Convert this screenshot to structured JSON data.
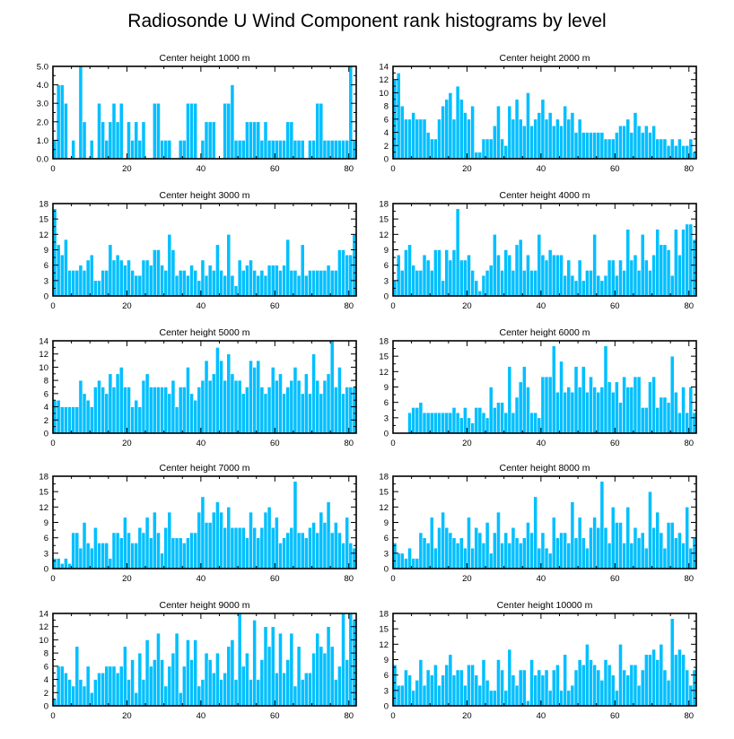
{
  "figure_title": "Radiosonde U Wind Component rank histograms by level",
  "chart_data": [
    {
      "type": "bar",
      "title": "Center height 1000 m",
      "xlim": [
        0,
        82
      ],
      "ylim": [
        0,
        5
      ],
      "xticks": [
        0,
        20,
        40,
        60,
        80
      ],
      "yticks": [
        0,
        1,
        2,
        3,
        4,
        5
      ],
      "ytick_labels": [
        "0.0",
        "1.0",
        "2.0",
        "3.0",
        "4.0",
        "5.0"
      ],
      "values": [
        1,
        4,
        4,
        3,
        0,
        1,
        0,
        5,
        2,
        0,
        1,
        0,
        3,
        2,
        1,
        2,
        3,
        2,
        3,
        0,
        2,
        1,
        2,
        1,
        2,
        0,
        0,
        3,
        3,
        1,
        1,
        1,
        0,
        0,
        1,
        1,
        3,
        3,
        3,
        0,
        1,
        2,
        2,
        2,
        0,
        0,
        3,
        3,
        4,
        1,
        1,
        1,
        2,
        2,
        2,
        2,
        1,
        2,
        1,
        1,
        1,
        1,
        1,
        2,
        2,
        1,
        1,
        1,
        0,
        1,
        1,
        3,
        3,
        1,
        1,
        1,
        1,
        1,
        1,
        1,
        5,
        1
      ]
    },
    {
      "type": "bar",
      "title": "Center height 2000 m",
      "xlim": [
        0,
        82
      ],
      "ylim": [
        0,
        14
      ],
      "xticks": [
        0,
        20,
        40,
        60,
        80
      ],
      "yticks": [
        0,
        2,
        4,
        6,
        8,
        10,
        12,
        14
      ],
      "ytick_labels": [
        "0",
        "2",
        "4",
        "6",
        "8",
        "10",
        "12",
        "14"
      ],
      "values": [
        12,
        13,
        8,
        6,
        6,
        7,
        6,
        6,
        6,
        4,
        3,
        3,
        6,
        8,
        9,
        10,
        6,
        11,
        9,
        7,
        6,
        8,
        1,
        1,
        3,
        3,
        3,
        5,
        8,
        3,
        2,
        8,
        6,
        9,
        6,
        5,
        10,
        5,
        6,
        7,
        9,
        6,
        7,
        5,
        6,
        5,
        8,
        6,
        7,
        4,
        6,
        4,
        4,
        4,
        4,
        4,
        4,
        3,
        3,
        3,
        4,
        5,
        5,
        6,
        4,
        7,
        5,
        4,
        5,
        4,
        5,
        3,
        3,
        3,
        2,
        3,
        2,
        3,
        2,
        2,
        3,
        1
      ]
    },
    {
      "type": "bar",
      "title": "Center height 3000 m",
      "xlim": [
        0,
        82
      ],
      "ylim": [
        0,
        18
      ],
      "xticks": [
        0,
        20,
        40,
        60,
        80
      ],
      "yticks": [
        0,
        3,
        6,
        9,
        12,
        15,
        18
      ],
      "ytick_labels": [
        "0",
        "3",
        "6",
        "9",
        "12",
        "15",
        "18"
      ],
      "values": [
        17,
        10,
        8,
        11,
        5,
        5,
        5,
        6,
        5,
        7,
        8,
        3,
        3,
        5,
        5,
        10,
        7,
        8,
        7,
        6,
        7,
        5,
        4,
        4,
        7,
        7,
        6,
        9,
        9,
        6,
        5,
        12,
        9,
        4,
        5,
        5,
        4,
        6,
        5,
        3,
        7,
        4,
        6,
        5,
        10,
        5,
        4,
        12,
        4,
        2,
        7,
        5,
        6,
        7,
        5,
        4,
        5,
        4,
        6,
        6,
        6,
        5,
        6,
        11,
        5,
        5,
        4,
        10,
        4,
        5,
        5,
        5,
        5,
        5,
        6,
        5,
        5,
        9,
        9,
        8,
        8,
        12
      ]
    },
    {
      "type": "bar",
      "title": "Center height 4000 m",
      "xlim": [
        0,
        82
      ],
      "ylim": [
        0,
        18
      ],
      "xticks": [
        0,
        20,
        40,
        60,
        80
      ],
      "yticks": [
        0,
        3,
        6,
        9,
        12,
        15,
        18
      ],
      "ytick_labels": [
        "0",
        "3",
        "6",
        "9",
        "12",
        "15",
        "18"
      ],
      "values": [
        3,
        8,
        5,
        9,
        10,
        6,
        5,
        5,
        8,
        7,
        5,
        9,
        9,
        3,
        9,
        7,
        9,
        17,
        7,
        7,
        8,
        5,
        3,
        1,
        4,
        5,
        6,
        12,
        8,
        5,
        9,
        8,
        5,
        10,
        11,
        5,
        8,
        5,
        5,
        12,
        8,
        7,
        9,
        8,
        8,
        8,
        4,
        7,
        4,
        3,
        7,
        3,
        5,
        5,
        12,
        4,
        3,
        4,
        7,
        7,
        4,
        7,
        5,
        13,
        7,
        8,
        5,
        12,
        7,
        5,
        8,
        13,
        10,
        10,
        9,
        4,
        13,
        8,
        13,
        14,
        14,
        11
      ]
    },
    {
      "type": "bar",
      "title": "Center height 5000 m",
      "xlim": [
        0,
        82
      ],
      "ylim": [
        0,
        14
      ],
      "xticks": [
        0,
        20,
        40,
        60,
        80
      ],
      "yticks": [
        0,
        2,
        4,
        6,
        8,
        10,
        12,
        14
      ],
      "ytick_labels": [
        "0",
        "2",
        "4",
        "6",
        "8",
        "10",
        "12",
        "14"
      ],
      "values": [
        5,
        5,
        4,
        4,
        4,
        4,
        4,
        8,
        6,
        5,
        4,
        7,
        8,
        7,
        6,
        9,
        7,
        9,
        10,
        7,
        7,
        4,
        5,
        4,
        8,
        9,
        7,
        7,
        7,
        7,
        7,
        6,
        8,
        4,
        7,
        7,
        10,
        6,
        5,
        7,
        8,
        11,
        8,
        9,
        13,
        11,
        8,
        12,
        9,
        8,
        8,
        6,
        7,
        11,
        10,
        11,
        7,
        6,
        7,
        10,
        8,
        9,
        6,
        7,
        8,
        10,
        8,
        6,
        9,
        6,
        12,
        8,
        6,
        8,
        9,
        14,
        7,
        10,
        6,
        7,
        7,
        7
      ]
    },
    {
      "type": "bar",
      "title": "Center height 6000 m",
      "xlim": [
        0,
        82
      ],
      "ylim": [
        0,
        18
      ],
      "xticks": [
        0,
        20,
        40,
        60,
        80
      ],
      "yticks": [
        0,
        3,
        6,
        9,
        12,
        15,
        18
      ],
      "ytick_labels": [
        "0",
        "3",
        "6",
        "9",
        "12",
        "15",
        "18"
      ],
      "values": [
        0,
        0,
        0,
        0,
        4,
        5,
        5,
        6,
        4,
        4,
        4,
        4,
        4,
        4,
        4,
        4,
        5,
        4,
        3,
        5,
        3,
        2,
        5,
        5,
        4,
        3,
        9,
        5,
        6,
        6,
        4,
        13,
        4,
        7,
        10,
        13,
        9,
        4,
        4,
        3,
        11,
        11,
        11,
        17,
        8,
        14,
        8,
        9,
        8,
        13,
        9,
        13,
        8,
        11,
        9,
        8,
        9,
        17,
        10,
        8,
        10,
        6,
        11,
        9,
        9,
        11,
        11,
        5,
        5,
        10,
        11,
        5,
        7,
        7,
        6,
        15,
        8,
        4,
        9,
        4,
        9,
        4
      ]
    },
    {
      "type": "bar",
      "title": "Center height 7000 m",
      "xlim": [
        0,
        82
      ],
      "ylim": [
        0,
        18
      ],
      "xticks": [
        0,
        20,
        40,
        60,
        80
      ],
      "yticks": [
        0,
        3,
        6,
        9,
        12,
        15,
        18
      ],
      "ytick_labels": [
        "0",
        "3",
        "6",
        "9",
        "12",
        "15",
        "18"
      ],
      "values": [
        2,
        2,
        1,
        2,
        1,
        7,
        7,
        4,
        9,
        5,
        4,
        8,
        5,
        5,
        5,
        2,
        7,
        7,
        6,
        10,
        7,
        5,
        5,
        8,
        7,
        10,
        6,
        11,
        7,
        3,
        8,
        11,
        6,
        6,
        6,
        5,
        6,
        7,
        7,
        11,
        14,
        9,
        9,
        11,
        13,
        11,
        8,
        12,
        8,
        8,
        8,
        8,
        6,
        11,
        8,
        6,
        8,
        11,
        12,
        8,
        10,
        5,
        6,
        7,
        8,
        17,
        7,
        7,
        6,
        8,
        9,
        7,
        11,
        9,
        13,
        7,
        9,
        7,
        5,
        10,
        5,
        4
      ]
    },
    {
      "type": "bar",
      "title": "Center height 8000 m",
      "xlim": [
        0,
        82
      ],
      "ylim": [
        0,
        18
      ],
      "xticks": [
        0,
        20,
        40,
        60,
        80
      ],
      "yticks": [
        0,
        3,
        6,
        9,
        12,
        15,
        18
      ],
      "ytick_labels": [
        "0",
        "3",
        "6",
        "9",
        "12",
        "15",
        "18"
      ],
      "values": [
        5,
        3,
        3,
        2,
        4,
        2,
        2,
        7,
        6,
        5,
        10,
        4,
        8,
        11,
        8,
        7,
        6,
        5,
        6,
        4,
        10,
        4,
        8,
        7,
        5,
        9,
        3,
        7,
        11,
        5,
        7,
        5,
        8,
        6,
        5,
        6,
        9,
        7,
        14,
        4,
        7,
        4,
        3,
        10,
        6,
        7,
        7,
        5,
        13,
        6,
        10,
        6,
        4,
        8,
        10,
        8,
        17,
        8,
        5,
        12,
        9,
        9,
        5,
        12,
        5,
        8,
        6,
        7,
        4,
        15,
        8,
        11,
        7,
        4,
        9,
        9,
        6,
        7,
        5,
        12,
        4,
        6
      ]
    },
    {
      "type": "bar",
      "title": "Center height 9000 m",
      "xlim": [
        0,
        82
      ],
      "ylim": [
        0,
        14
      ],
      "xticks": [
        0,
        20,
        40,
        60,
        80
      ],
      "yticks": [
        0,
        2,
        4,
        6,
        8,
        10,
        12,
        14
      ],
      "ytick_labels": [
        "0",
        "2",
        "4",
        "6",
        "8",
        "10",
        "12",
        "14"
      ],
      "values": [
        1,
        6,
        6,
        5,
        4,
        3,
        9,
        4,
        3,
        6,
        2,
        4,
        5,
        5,
        6,
        6,
        6,
        5,
        6,
        9,
        4,
        7,
        2,
        8,
        4,
        10,
        6,
        7,
        11,
        7,
        3,
        6,
        8,
        11,
        2,
        6,
        10,
        7,
        10,
        3,
        4,
        8,
        7,
        5,
        8,
        4,
        5,
        9,
        10,
        4,
        14,
        6,
        8,
        4,
        13,
        4,
        7,
        12,
        9,
        12,
        5,
        11,
        5,
        7,
        11,
        3,
        9,
        4,
        5,
        5,
        8,
        11,
        9,
        8,
        12,
        9,
        4,
        6,
        14,
        7,
        14,
        13
      ]
    },
    {
      "type": "bar",
      "title": "Center height 10000 m",
      "xlim": [
        0,
        82
      ],
      "ylim": [
        0,
        18
      ],
      "xticks": [
        0,
        20,
        40,
        60,
        80
      ],
      "yticks": [
        0,
        3,
        6,
        9,
        12,
        15,
        18
      ],
      "ytick_labels": [
        "0",
        "3",
        "6",
        "9",
        "12",
        "15",
        "18"
      ],
      "values": [
        8,
        4,
        4,
        7,
        6,
        3,
        5,
        9,
        4,
        7,
        6,
        8,
        4,
        6,
        8,
        10,
        6,
        7,
        7,
        4,
        8,
        8,
        6,
        4,
        9,
        5,
        3,
        3,
        9,
        7,
        3,
        11,
        6,
        4,
        7,
        7,
        1,
        9,
        6,
        7,
        6,
        7,
        3,
        7,
        8,
        3,
        10,
        3,
        4,
        7,
        9,
        8,
        12,
        9,
        8,
        7,
        5,
        9,
        8,
        6,
        3,
        12,
        7,
        6,
        8,
        8,
        4,
        7,
        10,
        10,
        11,
        9,
        12,
        7,
        5,
        17,
        10,
        11,
        10,
        7,
        4,
        7
      ]
    }
  ]
}
